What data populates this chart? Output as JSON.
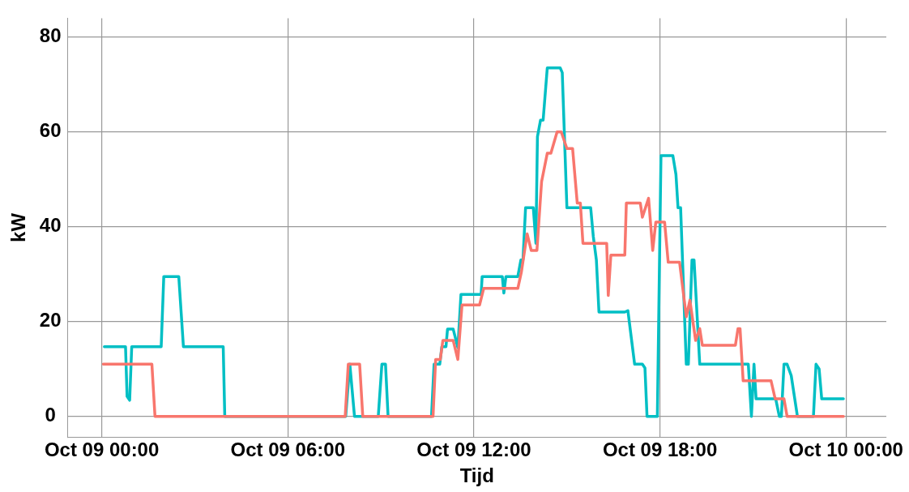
{
  "chart_data": {
    "type": "line",
    "xlabel": "Tijd",
    "ylabel": "kW",
    "xlim": [
      "--10-08T22:54",
      "--10-10T01:18"
    ],
    "ylim": [
      -4.4,
      84
    ],
    "xticks": [
      {
        "value": "--10-09T00:00",
        "label": "Oct 09 00:00"
      },
      {
        "value": "--10-09T06:00",
        "label": "Oct 09 06:00"
      },
      {
        "value": "--10-09T12:00",
        "label": "Oct 09 12:00"
      },
      {
        "value": "--10-09T18:00",
        "label": "Oct 09 18:00"
      },
      {
        "value": "--10-10T00:00",
        "label": "Oct 10 00:00"
      }
    ],
    "yticks": [
      0,
      20,
      40,
      60,
      80
    ],
    "grid": true,
    "legend": false,
    "marker": "none",
    "line_style": "solid",
    "series": [
      {
        "color": "#f8766d",
        "x": [
          "--10-09T00:03",
          "--10-09T01:37",
          "--10-09T01:43",
          "--10-09T07:51",
          "--10-09T07:57",
          "--10-09T08:19",
          "--10-09T08:25",
          "--10-09T10:41",
          "--10-09T10:46",
          "--10-09T10:55",
          "--10-09T11:00",
          "--10-09T11:20",
          "--10-09T11:29",
          "--10-09T11:37",
          "--10-09T12:11",
          "--10-09T12:19",
          "--10-09T13:25",
          "--10-09T13:32",
          "--10-09T13:43",
          "--10-09T13:51",
          "--10-09T14:02",
          "--10-09T14:11",
          "--10-09T14:22",
          "--10-09T14:29",
          "--10-09T14:41",
          "--10-09T14:49",
          "--10-09T15:00",
          "--10-09T15:11",
          "--10-09T15:20",
          "--10-09T15:26",
          "--10-09T15:31",
          "--10-09T16:17",
          "--10-09T16:20",
          "--10-09T16:25",
          "--10-09T16:52",
          "--10-09T16:55",
          "--10-09T17:22",
          "--10-09T17:26",
          "--10-09T17:38",
          "--10-09T17:46",
          "--10-09T17:52",
          "--10-09T18:09",
          "--10-09T18:16",
          "--10-09T18:38",
          "--10-09T18:51",
          "--10-09T18:58",
          "--10-09T19:09",
          "--10-09T19:17",
          "--10-09T19:22",
          "--10-09T20:26",
          "--10-09T20:31",
          "--10-09T20:35",
          "--10-09T20:41",
          "--10-09T21:35",
          "--10-09T21:43",
          "--10-09T22:00",
          "--10-09T22:06",
          "--10-09T23:55"
        ],
        "values": [
          11,
          11,
          0,
          0,
          11,
          11,
          0,
          0,
          12,
          12,
          16,
          16,
          12,
          23.5,
          23.5,
          27,
          27,
          30.5,
          38.5,
          35,
          35,
          49.5,
          55.5,
          55.5,
          60,
          60,
          56.5,
          56.5,
          45,
          45,
          36.5,
          36.5,
          25.5,
          34,
          34,
          45,
          45,
          42,
          46,
          35,
          41,
          41,
          32.5,
          32.5,
          21,
          24.5,
          16,
          18.5,
          15,
          15,
          18.5,
          18.5,
          7.5,
          7.5,
          3.7,
          3.7,
          0,
          0
        ]
      },
      {
        "color": "#00bfc4",
        "x": [
          "--10-09T00:05",
          "--10-09T00:46",
          "--10-09T00:49",
          "--10-09T00:54",
          "--10-09T00:58",
          "--10-09T01:55",
          "--10-09T02:00",
          "--10-09T02:29",
          "--10-09T02:38",
          "--10-09T03:55",
          "--10-09T03:58",
          "--10-09T07:52",
          "--10-09T08:00",
          "--10-09T08:09",
          "--10-09T08:55",
          "--10-09T09:02",
          "--10-09T09:09",
          "--10-09T09:14",
          "--10-09T10:38",
          "--10-09T10:43",
          "--10-09T10:54",
          "--10-09T10:58",
          "--10-09T11:06",
          "--10-09T11:09",
          "--10-09T11:20",
          "--10-09T11:29",
          "--10-09T11:35",
          "--10-09T12:14",
          "--10-09T12:16",
          "--10-09T12:55",
          "--10-09T12:58",
          "--10-09T13:02",
          "--10-09T13:25",
          "--10-09T13:31",
          "--10-09T13:35",
          "--10-09T13:40",
          "--10-09T13:55",
          "--10-09T14:00",
          "--10-09T14:03",
          "--10-09T14:09",
          "--10-09T14:14",
          "--10-09T14:22",
          "--10-09T14:47",
          "--10-09T14:51",
          "--10-09T15:00",
          "--10-09T15:46",
          "--10-09T15:51",
          "--10-09T15:57",
          "--10-09T16:02",
          "--10-09T16:52",
          "--10-09T16:58",
          "--10-09T17:11",
          "--10-09T17:26",
          "--10-09T17:31",
          "--10-09T17:35",
          "--10-09T17:55",
          "--10-09T18:02",
          "--10-09T18:25",
          "--10-09T18:31",
          "--10-09T18:35",
          "--10-09T18:40",
          "--10-09T18:51",
          "--10-09T18:55",
          "--10-09T19:02",
          "--10-09T19:06",
          "--10-09T19:17",
          "--10-09T20:51",
          "--10-09T20:57",
          "--10-09T21:02",
          "--10-09T21:06",
          "--10-09T21:44",
          "--10-09T21:51",
          "--10-09T21:55",
          "--10-09T22:00",
          "--10-09T22:06",
          "--10-09T22:14",
          "--10-09T22:26",
          "--10-09T22:57",
          "--10-09T23:02",
          "--10-09T23:08",
          "--10-09T23:13",
          "--10-09T23:55"
        ],
        "values": [
          14.7,
          14.7,
          4.2,
          3.4,
          14.7,
          14.7,
          29.5,
          29.5,
          14.7,
          14.7,
          0,
          0,
          11,
          0,
          0,
          11,
          11,
          0,
          0,
          11,
          11,
          14.7,
          14.7,
          18.4,
          18.4,
          14.5,
          25.7,
          25.7,
          29.5,
          29.5,
          26,
          29.5,
          29.5,
          33,
          33,
          44,
          44,
          36.5,
          59,
          62.5,
          62.5,
          73.5,
          73.5,
          72.5,
          44,
          44,
          38,
          33,
          22,
          22,
          22.3,
          11,
          11,
          10.2,
          0,
          0,
          55,
          55,
          51,
          44,
          44,
          11,
          11,
          33,
          33,
          11,
          11,
          0,
          11,
          3.7,
          3.7,
          0,
          0,
          11,
          11,
          8.6,
          0,
          0,
          11,
          10,
          3.7,
          3.7
        ]
      }
    ]
  }
}
